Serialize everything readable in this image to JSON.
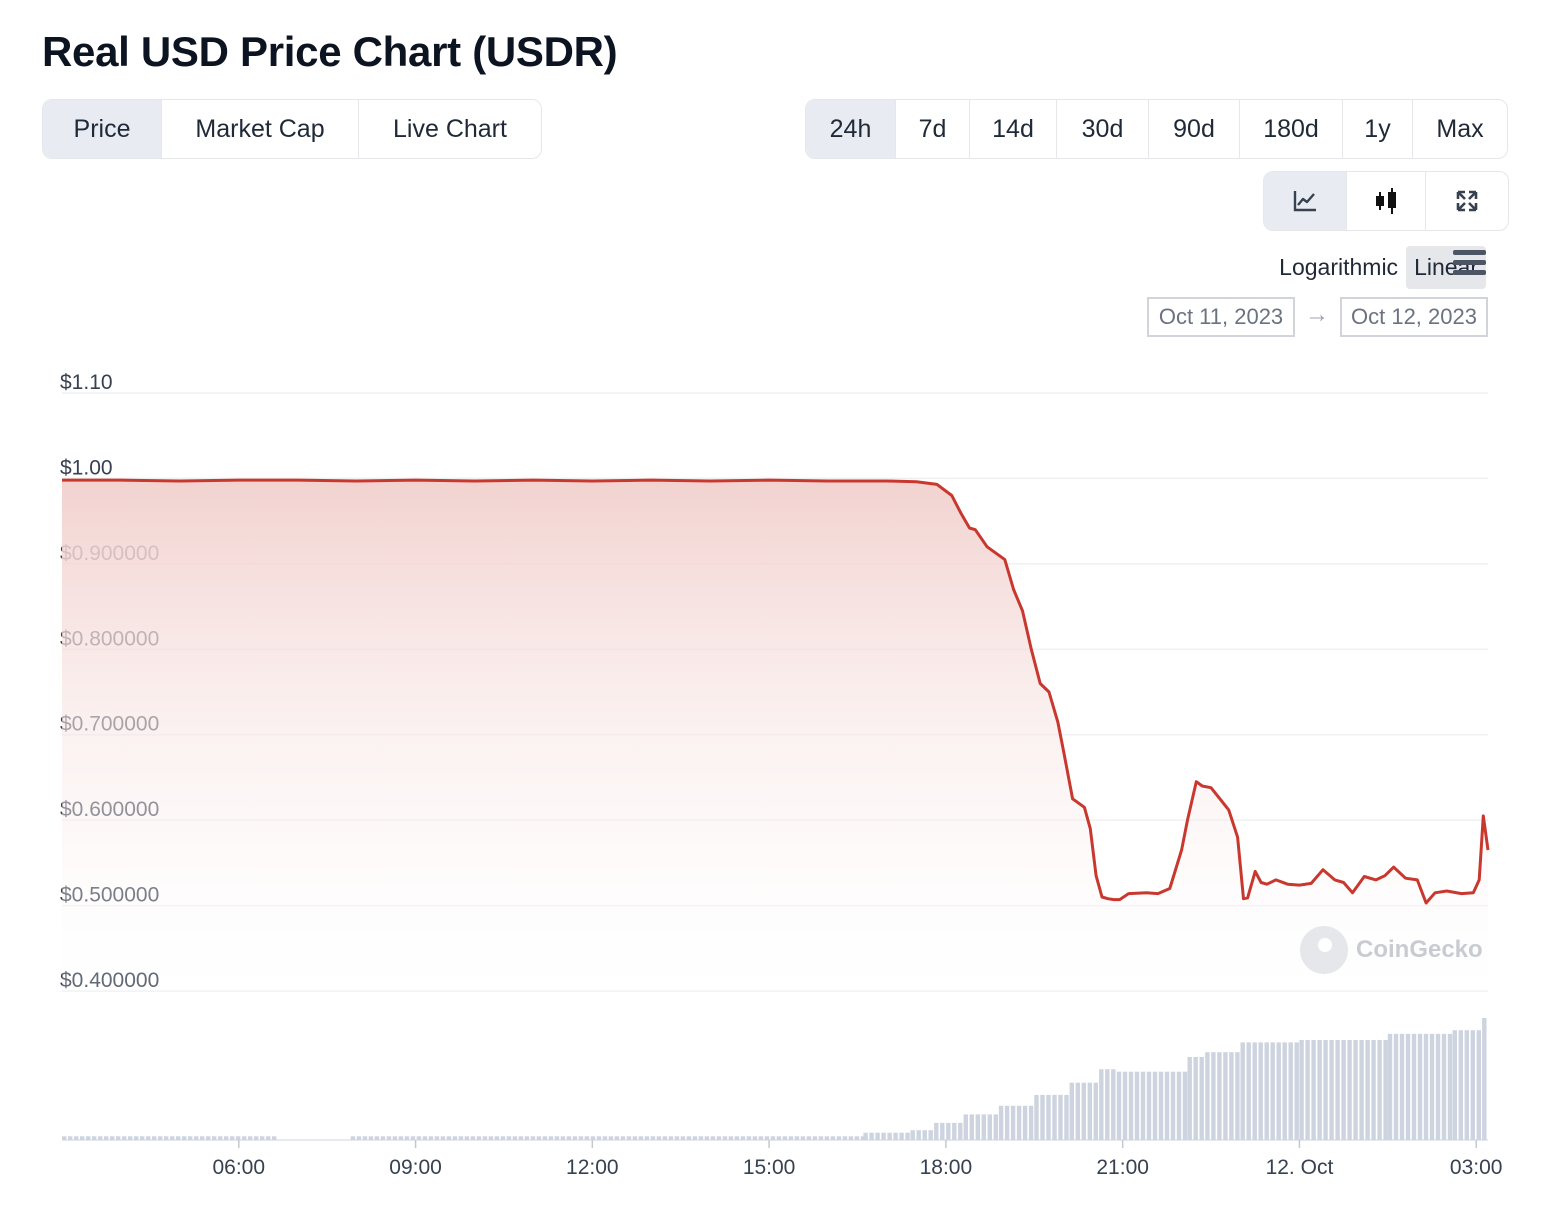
{
  "header": {
    "title": "Real USD Price Chart (USDR)"
  },
  "view_tabs": [
    {
      "label": "Price",
      "active": true
    },
    {
      "label": "Market Cap",
      "active": false
    },
    {
      "label": "Live Chart",
      "active": false
    }
  ],
  "range_tabs": [
    {
      "label": "24h",
      "active": true
    },
    {
      "label": "7d",
      "active": false
    },
    {
      "label": "14d",
      "active": false
    },
    {
      "label": "30d",
      "active": false
    },
    {
      "label": "90d",
      "active": false
    },
    {
      "label": "180d",
      "active": false
    },
    {
      "label": "1y",
      "active": false
    },
    {
      "label": "Max",
      "active": false
    }
  ],
  "chart_type_tabs": [
    {
      "icon": "line-chart-icon",
      "active": true
    },
    {
      "icon": "candlestick-icon",
      "active": false
    },
    {
      "icon": "fullscreen-icon",
      "active": false
    }
  ],
  "scale": {
    "log_label": "Logarithmic",
    "linear_label": "Linear",
    "active": "Linear",
    "menu_icon": "hamburger-menu-icon"
  },
  "date_range": {
    "from": "Oct 11, 2023",
    "to": "Oct 12, 2023",
    "arrow": "→"
  },
  "watermark": {
    "text": "CoinGecko",
    "icon": "coingecko-logo-icon"
  },
  "colors": {
    "line": "#c9382f",
    "fill_top": "#f1d0cd",
    "volume": "#cdd3df",
    "grid": "#eef0f3",
    "active_tab": "#e8ecf2"
  },
  "chart_data": {
    "type": "area",
    "title": "",
    "xlabel": "",
    "ylabel": "",
    "x_start_hours": 3.0,
    "x_end_hours": 27.2,
    "ylim": [
      0.4,
      1.1
    ],
    "grid": true,
    "y_ticks": [
      {
        "value": 1.1,
        "label": "$1.10"
      },
      {
        "value": 1.0,
        "label": "$1.00"
      },
      {
        "value": 0.9,
        "label": "$0.900000"
      },
      {
        "value": 0.8,
        "label": "$0.800000"
      },
      {
        "value": 0.7,
        "label": "$0.700000"
      },
      {
        "value": 0.6,
        "label": "$0.600000"
      },
      {
        "value": 0.5,
        "label": "$0.500000"
      },
      {
        "value": 0.4,
        "label": "$0.400000"
      }
    ],
    "x_ticks": [
      {
        "value": 6,
        "label": "06:00"
      },
      {
        "value": 9,
        "label": "09:00"
      },
      {
        "value": 12,
        "label": "12:00"
      },
      {
        "value": 15,
        "label": "15:00"
      },
      {
        "value": 18,
        "label": "18:00"
      },
      {
        "value": 21,
        "label": "21:00"
      },
      {
        "value": 24,
        "label": "12. Oct"
      },
      {
        "value": 27,
        "label": "03:00"
      }
    ],
    "series": [
      {
        "x": [
          3.0,
          4.0,
          5.0,
          6.0,
          7.0,
          8.0,
          9.0,
          10.0,
          11.0,
          12.0,
          13.0,
          14.0,
          15.0,
          16.0,
          17.0,
          17.5,
          17.85,
          18.1,
          18.25,
          18.4,
          18.5,
          18.7,
          18.9,
          19.0,
          19.15,
          19.3,
          19.45,
          19.6,
          19.75,
          19.9,
          20.0,
          20.15,
          20.25,
          20.35,
          20.45,
          20.55,
          20.65,
          20.75,
          20.85,
          20.95,
          21.1,
          21.4,
          21.6,
          21.8,
          22.0,
          22.1,
          22.25,
          22.35,
          22.5,
          22.65,
          22.8,
          22.95,
          23.05,
          23.12,
          23.25,
          23.35,
          23.45,
          23.6,
          23.8,
          24.0,
          24.2,
          24.4,
          24.6,
          24.75,
          24.9,
          25.1,
          25.3,
          25.45,
          25.6,
          25.8,
          26.0,
          26.15,
          26.3,
          26.5,
          26.75,
          26.95,
          27.05,
          27.12,
          27.2
        ],
        "values": [
          0.998,
          0.998,
          0.997,
          0.998,
          0.998,
          0.997,
          0.998,
          0.997,
          0.998,
          0.997,
          0.998,
          0.997,
          0.998,
          0.997,
          0.997,
          0.996,
          0.993,
          0.98,
          0.96,
          0.942,
          0.94,
          0.92,
          0.91,
          0.905,
          0.87,
          0.845,
          0.8,
          0.76,
          0.75,
          0.715,
          0.68,
          0.625,
          0.62,
          0.615,
          0.59,
          0.535,
          0.51,
          0.508,
          0.507,
          0.507,
          0.514,
          0.515,
          0.514,
          0.52,
          0.565,
          0.6,
          0.645,
          0.64,
          0.638,
          0.625,
          0.612,
          0.58,
          0.508,
          0.509,
          0.54,
          0.527,
          0.525,
          0.53,
          0.525,
          0.524,
          0.526,
          0.542,
          0.53,
          0.527,
          0.515,
          0.534,
          0.53,
          0.535,
          0.545,
          0.532,
          0.53,
          0.503,
          0.515,
          0.517,
          0.514,
          0.515,
          0.53,
          0.605,
          0.565
        ]
      }
    ],
    "volume": [
      {
        "from": 3.0,
        "to": 6.6,
        "level": 0.03
      },
      {
        "from": 6.6,
        "to": 7.9,
        "level": 0.0
      },
      {
        "from": 7.9,
        "to": 16.6,
        "level": 0.03
      },
      {
        "from": 16.6,
        "to": 17.4,
        "level": 0.06
      },
      {
        "from": 17.4,
        "to": 17.8,
        "level": 0.08
      },
      {
        "from": 17.8,
        "to": 18.3,
        "level": 0.14
      },
      {
        "from": 18.3,
        "to": 18.9,
        "level": 0.21
      },
      {
        "from": 18.9,
        "to": 19.5,
        "level": 0.28
      },
      {
        "from": 19.5,
        "to": 20.1,
        "level": 0.37
      },
      {
        "from": 20.1,
        "to": 20.6,
        "level": 0.47
      },
      {
        "from": 20.6,
        "to": 20.9,
        "level": 0.58
      },
      {
        "from": 20.9,
        "to": 22.1,
        "level": 0.56
      },
      {
        "from": 22.1,
        "to": 22.4,
        "level": 0.68
      },
      {
        "from": 22.4,
        "to": 23.0,
        "level": 0.72
      },
      {
        "from": 23.0,
        "to": 24.0,
        "level": 0.8
      },
      {
        "from": 24.0,
        "to": 25.5,
        "level": 0.82
      },
      {
        "from": 25.5,
        "to": 26.6,
        "level": 0.87
      },
      {
        "from": 26.6,
        "to": 27.1,
        "level": 0.9
      },
      {
        "from": 27.1,
        "to": 27.2,
        "level": 1.0
      }
    ]
  }
}
